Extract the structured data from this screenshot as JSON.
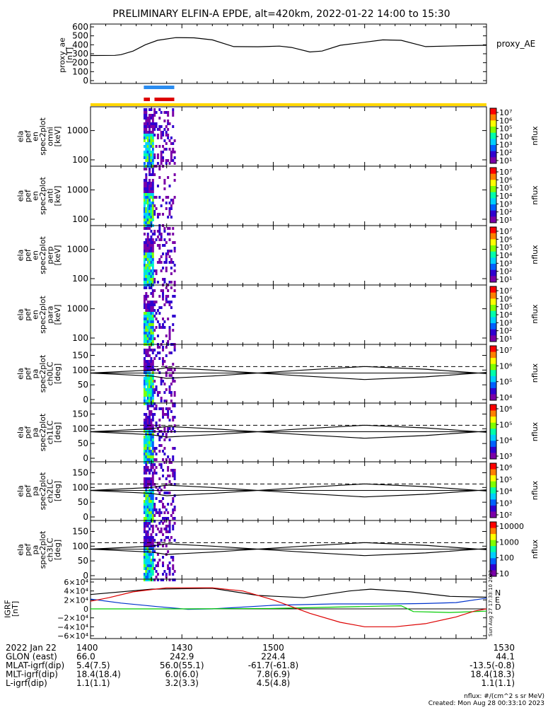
{
  "title": "PRELIMINARY ELFIN-A EPDE, alt=420km, 2022-01-22 14:00 to 15:30",
  "proxy": {
    "ylabel": [
      "proxy_ae",
      "[nT]"
    ],
    "legend": "proxy_AE",
    "ylim": [
      0,
      600
    ],
    "ticks": [
      "0",
      "100",
      "200",
      "300",
      "400",
      "500",
      "600"
    ],
    "series": [
      [
        0,
        280
      ],
      [
        8,
        282
      ],
      [
        10,
        290
      ],
      [
        14,
        330
      ],
      [
        18,
        400
      ],
      [
        22,
        450
      ],
      [
        28,
        480
      ],
      [
        34,
        478
      ],
      [
        40,
        455
      ],
      [
        47,
        380
      ],
      [
        55,
        378
      ],
      [
        62,
        385
      ],
      [
        66,
        370
      ],
      [
        72,
        320
      ],
      [
        76,
        330
      ],
      [
        82,
        395
      ],
      [
        88,
        420
      ],
      [
        96,
        455
      ],
      [
        102,
        450
      ],
      [
        110,
        380
      ],
      [
        122,
        390
      ],
      [
        130,
        395
      ]
    ]
  },
  "bars": {
    "blue": [
      [
        17.5,
        27.5
      ]
    ],
    "red": [
      [
        17.5,
        19.5
      ],
      [
        21,
        27.5
      ]
    ],
    "yellow": [
      [
        0,
        130
      ]
    ]
  },
  "spectra": [
    {
      "ylabel": [
        "ela",
        "pef",
        "en",
        "spec2plot",
        "omni",
        "[keV]"
      ],
      "ticks": [
        "100",
        "1000"
      ],
      "cb_ticks": [
        "10⁷",
        "10⁶",
        "10⁵",
        "10⁴",
        "10³",
        "10²",
        "10¹"
      ],
      "cb_label": "nflux"
    },
    {
      "ylabel": [
        "ela",
        "pef",
        "en",
        "spec2plot",
        "anti",
        "[keV]"
      ],
      "ticks": [
        "100",
        "1000"
      ],
      "cb_ticks": [
        "10⁷",
        "10⁶",
        "10⁵",
        "10⁴",
        "10³",
        "10²",
        "10¹"
      ],
      "cb_label": "nflux"
    },
    {
      "ylabel": [
        "ela",
        "pef",
        "en",
        "spec2plot",
        "perp",
        "[keV]"
      ],
      "ticks": [
        "100",
        "1000"
      ],
      "cb_ticks": [
        "10⁷",
        "10⁶",
        "10⁵",
        "10⁴",
        "10³",
        "10²",
        "10¹"
      ],
      "cb_label": "nflux"
    },
    {
      "ylabel": [
        "ela",
        "pef",
        "en",
        "spec2plot",
        "para",
        "[keV]"
      ],
      "ticks": [
        "100",
        "1000"
      ],
      "cb_ticks": [
        "10⁷",
        "10⁶",
        "10⁵",
        "10⁴",
        "10³",
        "10²",
        "10¹"
      ],
      "cb_label": "nflux"
    }
  ],
  "pitch": [
    {
      "ylabel": [
        "ela",
        "pef",
        "pa",
        "spec2plot",
        "ch0LC",
        "[deg]"
      ],
      "ticks": [
        "0",
        "50",
        "100",
        "150"
      ],
      "cb_ticks": [
        "10⁷",
        "10⁶",
        "10⁵",
        "10⁴"
      ],
      "cb_label": "nflux"
    },
    {
      "ylabel": [
        "ela",
        "pef",
        "pa",
        "spec2plot",
        "ch1LC",
        "[deg]"
      ],
      "ticks": [
        "0",
        "50",
        "100",
        "150"
      ],
      "cb_ticks": [
        "10⁶",
        "10⁵",
        "10⁴",
        "10³"
      ],
      "cb_label": "nflux"
    },
    {
      "ylabel": [
        "ela",
        "pef",
        "pa",
        "spec2plot",
        "ch2LC",
        "[deg]"
      ],
      "ticks": [
        "0",
        "50",
        "100",
        "150"
      ],
      "cb_ticks": [
        "10⁶",
        "10⁵",
        "10⁴",
        "10³",
        "10²"
      ],
      "cb_label": "nflux"
    },
    {
      "ylabel": [
        "ela",
        "pef",
        "pa",
        "spec2plot",
        "ch3LC",
        "[deg]"
      ],
      "ticks": [
        "0",
        "50",
        "100",
        "150"
      ],
      "cb_ticks": [
        "10000",
        "1000",
        "100",
        "10"
      ],
      "cb_label": "nflux"
    }
  ],
  "lossCone": {
    "upper": [
      [
        0,
        90
      ],
      [
        20,
        80
      ],
      [
        25,
        72
      ],
      [
        40,
        80
      ],
      [
        70,
        100
      ],
      [
        90,
        112
      ],
      [
        110,
        103
      ],
      [
        130,
        88
      ]
    ],
    "lower": [
      [
        0,
        90
      ],
      [
        20,
        80
      ],
      [
        25,
        72
      ],
      [
        40,
        80
      ],
      [
        70,
        100
      ],
      [
        90,
        112
      ],
      [
        110,
        103
      ],
      [
        130,
        88
      ]
    ],
    "dashed": 112
  },
  "igrf": {
    "ylabel": [
      "IGRF",
      "[nT]"
    ],
    "ticks": [
      "6×10⁴",
      "4×10⁴",
      "2×10⁴",
      "0",
      "−2×10⁴",
      "−4×10⁴",
      "−6×10⁴"
    ],
    "ylim": [
      -60000,
      60000
    ],
    "legend": [
      "N",
      "E",
      "D"
    ],
    "side_note": "Sun Aug 27 17:33:10 2023",
    "N": [
      [
        0,
        32000
      ],
      [
        20,
        44000
      ],
      [
        40,
        46000
      ],
      [
        55,
        30000
      ],
      [
        70,
        25000
      ],
      [
        85,
        40000
      ],
      [
        92,
        44000
      ],
      [
        105,
        38000
      ],
      [
        118,
        28000
      ],
      [
        130,
        26000
      ]
    ],
    "E": [
      [
        0,
        22000
      ],
      [
        10,
        13000
      ],
      [
        22,
        5000
      ],
      [
        32,
        -1000
      ],
      [
        40,
        0
      ],
      [
        60,
        8000
      ],
      [
        80,
        11000
      ],
      [
        92,
        11000
      ],
      [
        100,
        11000
      ],
      [
        110,
        12000
      ],
      [
        120,
        14000
      ],
      [
        130,
        24000
      ]
    ],
    "D": [
      [
        0,
        17000
      ],
      [
        6,
        25000
      ],
      [
        14,
        38000
      ],
      [
        25,
        47000
      ],
      [
        40,
        47000
      ],
      [
        50,
        40000
      ],
      [
        60,
        20000
      ],
      [
        72,
        -10000
      ],
      [
        82,
        -30000
      ],
      [
        90,
        -40000
      ],
      [
        100,
        -40000
      ],
      [
        110,
        -33000
      ],
      [
        120,
        -18000
      ],
      [
        126,
        -5000
      ],
      [
        130,
        0
      ]
    ],
    "G": [
      [
        0,
        0
      ],
      [
        30,
        0
      ],
      [
        60,
        1000
      ],
      [
        80,
        4000
      ],
      [
        95,
        6000
      ],
      [
        102,
        7000
      ],
      [
        106,
        -6000
      ],
      [
        118,
        -8000
      ],
      [
        130,
        -5000
      ]
    ]
  },
  "footer": {
    "rows": [
      {
        "label": "2022 Jan 22",
        "values": [
          "1400",
          "1430",
          "1500",
          "1530"
        ]
      },
      {
        "label": "GLON (east)",
        "values": [
          "66.0",
          "242.9",
          "224.4",
          "44.1"
        ]
      },
      {
        "label": "MLAT-igrf(dip)",
        "values": [
          "5.4(7.5)",
          "56.0(55.1)",
          "-61.7(-61.8)",
          "-13.5(-0.8)"
        ]
      },
      {
        "label": "MLT-igrf(dip)",
        "values": [
          "18.4(18.4)",
          "6.0(6.0)",
          "7.8(6.9)",
          "18.4(18.3)"
        ]
      },
      {
        "label": "L-igrf(dip)",
        "values": [
          "1.1(1.1)",
          "3.2(3.3)",
          "4.5(4.8)",
          "1.1(1.1)"
        ]
      }
    ],
    "units": "nflux: #/(cm^2 s sr MeV)",
    "created": "Created: Mon Aug 28 00:33:10 2023"
  },
  "colors": {
    "N": "#000000",
    "E": "#0033cc",
    "D": "#dd0000",
    "G": "#00cc00",
    "blue": "#2a8cf0",
    "red": "#dd0000",
    "yellow": "#ffd700"
  }
}
